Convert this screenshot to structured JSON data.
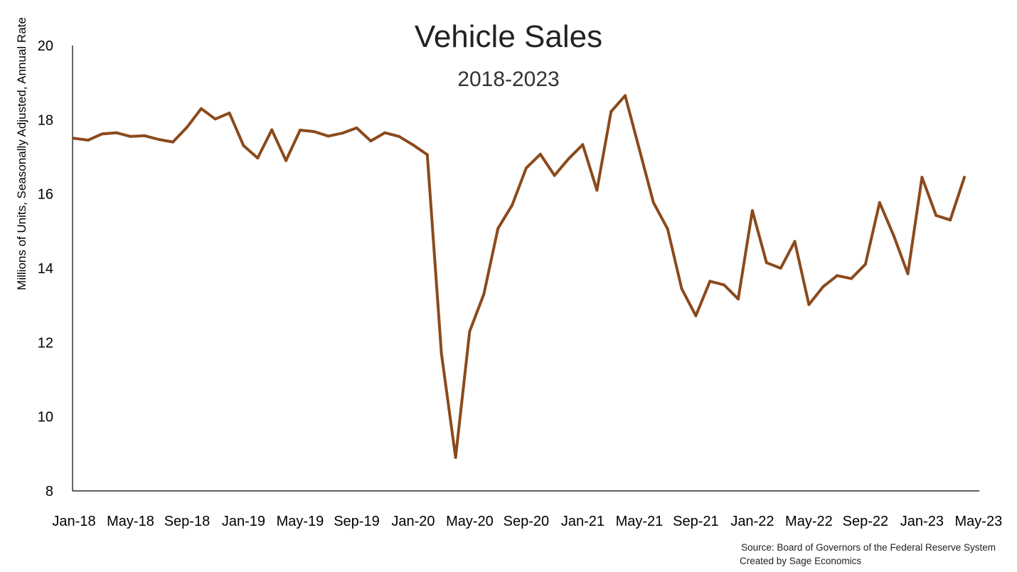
{
  "chart_data": {
    "type": "line",
    "title": "Vehicle Sales",
    "subtitle": "2018-2023",
    "xlabel": "",
    "ylabel": "Millions of Units, Seasonally Adjusted, Annual Rate",
    "ylim": [
      8,
      20
    ],
    "yticks": [
      "8",
      "10",
      "12",
      "14",
      "16",
      "18",
      "20"
    ],
    "xticks": [
      "Jan-18",
      "May-18",
      "Sep-18",
      "Jan-19",
      "May-19",
      "Sep-19",
      "Jan-20",
      "May-20",
      "Sep-20",
      "Jan-21",
      "May-21",
      "Sep-21",
      "Jan-22",
      "May-22",
      "Sep-22",
      "Jan-23",
      "May-23"
    ],
    "grid": false,
    "line_color": "#8B4A1C",
    "series": [
      {
        "name": "Vehicle Sales",
        "start": "Jan-18",
        "values": [
          17.5,
          17.45,
          17.62,
          17.65,
          17.55,
          17.57,
          17.47,
          17.4,
          17.8,
          18.3,
          18.02,
          18.18,
          17.3,
          16.97,
          17.73,
          16.9,
          17.72,
          17.68,
          17.56,
          17.64,
          17.78,
          17.43,
          17.65,
          17.55,
          17.32,
          17.06,
          11.7,
          8.9,
          12.3,
          13.3,
          15.07,
          15.7,
          16.7,
          17.07,
          16.5,
          16.95,
          17.33,
          16.1,
          18.22,
          18.65,
          17.21,
          15.77,
          15.06,
          13.45,
          12.72,
          13.65,
          13.55,
          13.17,
          15.55,
          14.15,
          14.0,
          14.72,
          13.02,
          13.5,
          13.8,
          13.72,
          14.11,
          15.77,
          14.88,
          13.85,
          16.45,
          15.42,
          15.3,
          16.45
        ]
      }
    ],
    "source": "Source: Board of Governors of the Federal Reserve System",
    "credit": "Created by Sage Economics"
  }
}
